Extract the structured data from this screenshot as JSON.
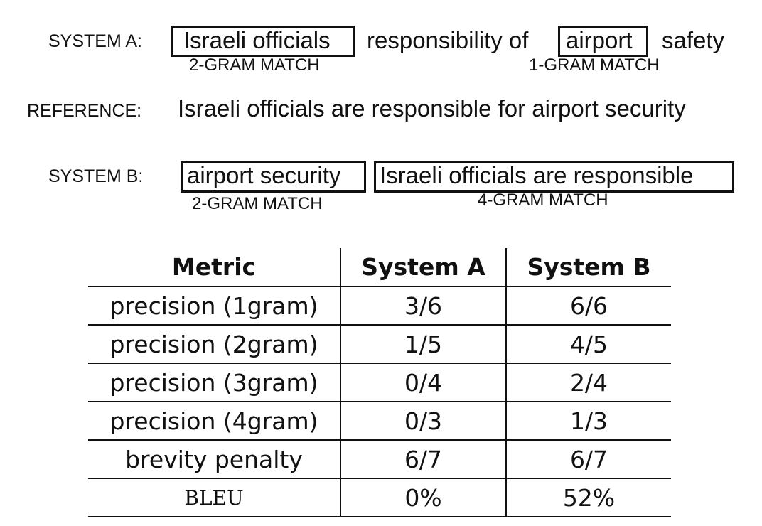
{
  "system_a": {
    "label": "SYSTEM A:",
    "phrase1": "Israeli officials",
    "phrase2": "responsibility of",
    "phrase3": "airport",
    "phrase4": "safety",
    "match1": "2-GRAM MATCH",
    "match2": "1-GRAM MATCH"
  },
  "reference": {
    "label": "REFERENCE:",
    "sentence": "Israeli officials are responsible for airport security"
  },
  "system_b": {
    "label": "SYSTEM B:",
    "phrase1": "airport security",
    "phrase2": "Israeli officials are responsible",
    "match1": "2-GRAM MATCH",
    "match2": "4-GRAM MATCH"
  },
  "table": {
    "headers": [
      "Metric",
      "System A",
      "System B"
    ],
    "rows": [
      [
        "precision (1gram)",
        "3/6",
        "6/6"
      ],
      [
        "precision (2gram)",
        "1/5",
        "4/5"
      ],
      [
        "precision (3gram)",
        "0/4",
        "2/4"
      ],
      [
        "precision (4gram)",
        "0/3",
        "1/3"
      ],
      [
        "brevity penalty",
        "6/7",
        "6/7"
      ],
      [
        "BLEU",
        "0%",
        "52%"
      ]
    ]
  }
}
